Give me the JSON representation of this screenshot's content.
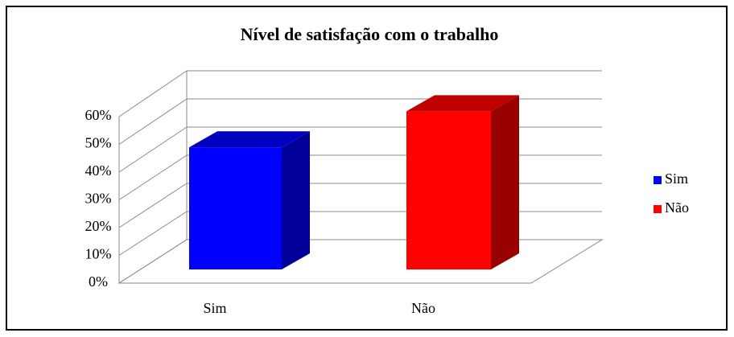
{
  "chart_data": {
    "type": "bar3d",
    "title": "Nível de satisfação com o trabalho",
    "categories": [
      "Sim",
      "Não"
    ],
    "values": [
      44,
      57
    ],
    "colors": [
      "#0000ff",
      "#ff0000"
    ],
    "ylim": [
      0,
      60
    ],
    "yticks": [
      {
        "value": 0,
        "label": "0%"
      },
      {
        "value": 10,
        "label": "10%"
      },
      {
        "value": 20,
        "label": "20%"
      },
      {
        "value": 30,
        "label": "30%"
      },
      {
        "value": 40,
        "label": "40%"
      },
      {
        "value": 50,
        "label": "50%"
      },
      {
        "value": 60,
        "label": "60%"
      }
    ],
    "grid": true,
    "legend": "right"
  }
}
